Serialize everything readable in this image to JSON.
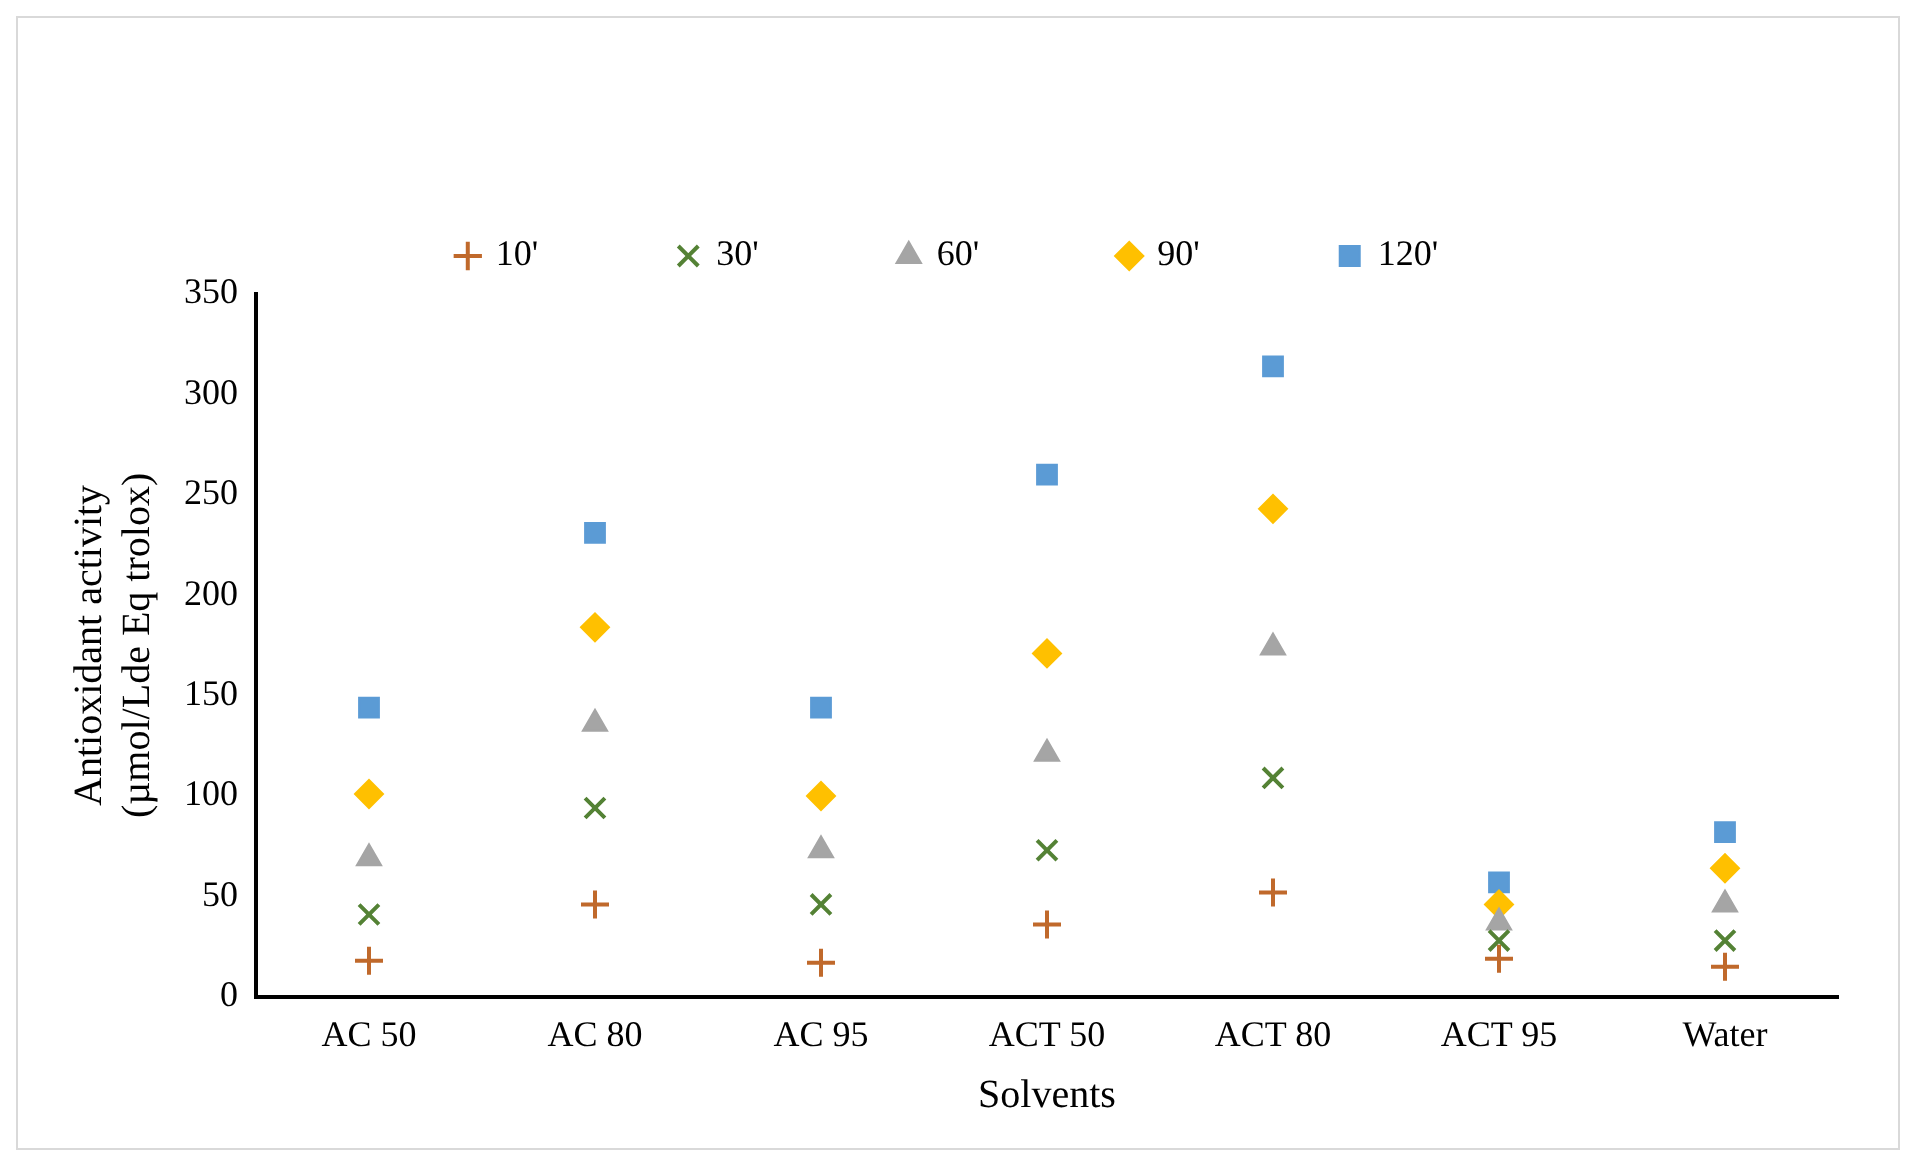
{
  "chart_data": {
    "type": "scatter",
    "xlabel": "Solvents",
    "ylabel": "Antioxidant activity\n(µmol/Lde Eq trolox)",
    "categories": [
      "AC 50",
      "AC 80",
      "AC 95",
      "ACT 50",
      "ACT 80",
      "ACT 95",
      "Water"
    ],
    "ylim": [
      0,
      350
    ],
    "yticks": [
      0,
      50,
      100,
      150,
      200,
      250,
      300,
      350
    ],
    "grid": false,
    "legend": "top",
    "series": [
      {
        "name": "10'",
        "color": "#c0692b",
        "marker": "cross",
        "values": [
          18,
          46,
          17,
          36,
          52,
          19,
          15
        ]
      },
      {
        "name": "30'",
        "color": "#548235",
        "marker": "cross",
        "values": [
          41,
          94,
          46,
          73,
          109,
          28,
          28
        ]
      },
      {
        "name": "60'",
        "color": "#a5a5a5",
        "marker": "triangle",
        "values": [
          69,
          136,
          73,
          121,
          174,
          37,
          46
        ]
      },
      {
        "name": "90'",
        "color": "#ffc000",
        "marker": "diamond",
        "values": [
          101,
          184,
          100,
          171,
          243,
          46,
          64
        ]
      },
      {
        "name": "120'",
        "color": "#5b9bd5",
        "marker": "square",
        "values": [
          144,
          231,
          144,
          260,
          314,
          57,
          82
        ]
      }
    ]
  }
}
